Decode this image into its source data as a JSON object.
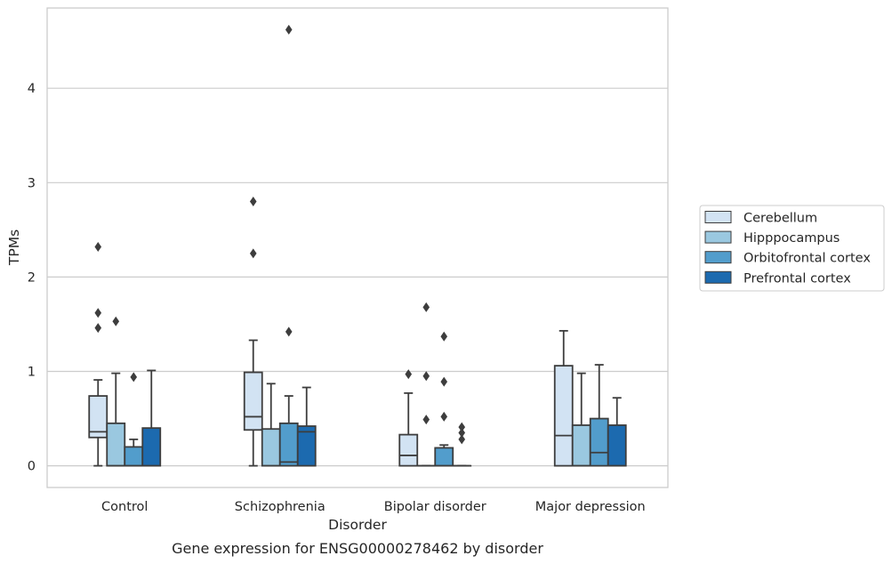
{
  "caption": "Gene expression for ENSG00000278462 by disorder",
  "chart_data": {
    "type": "box",
    "xlabel": "Disorder",
    "ylabel": "TPMs",
    "ylim": [
      -0.23,
      4.85
    ],
    "yticks": [
      0,
      1,
      2,
      3,
      4
    ],
    "grid": "horizontal",
    "legend_position": "right",
    "categories": [
      "Control",
      "Schizophrenia",
      "Bipolar disorder",
      "Major depression"
    ],
    "series": [
      {
        "name": "Cerebellum",
        "color": "#d2e3f3",
        "boxes": [
          {
            "whislo": 0.0,
            "q1": 0.3,
            "med": 0.36,
            "q3": 0.74,
            "whishi": 0.91,
            "fliers": [
              1.46,
              1.62,
              2.32
            ]
          },
          {
            "whislo": 0.0,
            "q1": 0.38,
            "med": 0.52,
            "q3": 0.99,
            "whishi": 1.33,
            "fliers": [
              2.25,
              2.8
            ]
          },
          {
            "whislo": 0.0,
            "q1": 0.0,
            "med": 0.11,
            "q3": 0.33,
            "whishi": 0.77,
            "fliers": [
              0.97
            ]
          },
          {
            "whislo": 0.0,
            "q1": 0.0,
            "med": 0.32,
            "q3": 1.06,
            "whishi": 1.43,
            "fliers": []
          }
        ]
      },
      {
        "name": "Hipppocampus",
        "color": "#9ac8e0",
        "boxes": [
          {
            "whislo": 0.0,
            "q1": 0.0,
            "med": 0.0,
            "q3": 0.45,
            "whishi": 0.98,
            "fliers": [
              1.53
            ]
          },
          {
            "whislo": 0.0,
            "q1": 0.0,
            "med": 0.0,
            "q3": 0.39,
            "whishi": 0.87,
            "fliers": []
          },
          {
            "whislo": 0.0,
            "q1": 0.0,
            "med": 0.0,
            "q3": 0.0,
            "whishi": 0.0,
            "fliers": [
              0.49,
              0.95,
              1.68
            ]
          },
          {
            "whislo": 0.0,
            "q1": 0.0,
            "med": 0.0,
            "q3": 0.43,
            "whishi": 0.98,
            "fliers": []
          }
        ]
      },
      {
        "name": "Orbitofrontal cortex",
        "color": "#529dcc",
        "boxes": [
          {
            "whislo": 0.0,
            "q1": 0.0,
            "med": 0.0,
            "q3": 0.2,
            "whishi": 0.28,
            "fliers": [
              0.94
            ]
          },
          {
            "whislo": 0.0,
            "q1": 0.0,
            "med": 0.04,
            "q3": 0.45,
            "whishi": 0.74,
            "fliers": [
              1.42,
              4.62
            ]
          },
          {
            "whislo": 0.0,
            "q1": 0.0,
            "med": 0.0,
            "q3": 0.19,
            "whishi": 0.22,
            "fliers": [
              0.52,
              0.89,
              1.37
            ]
          },
          {
            "whislo": 0.0,
            "q1": 0.0,
            "med": 0.14,
            "q3": 0.5,
            "whishi": 1.07,
            "fliers": []
          }
        ]
      },
      {
        "name": "Prefrontal cortex",
        "color": "#1c6aaf",
        "boxes": [
          {
            "whislo": 0.0,
            "q1": 0.0,
            "med": 0.0,
            "q3": 0.4,
            "whishi": 1.01,
            "fliers": []
          },
          {
            "whislo": 0.0,
            "q1": 0.0,
            "med": 0.36,
            "q3": 0.42,
            "whishi": 0.83,
            "fliers": []
          },
          {
            "whislo": 0.0,
            "q1": 0.0,
            "med": 0.0,
            "q3": 0.0,
            "whishi": 0.0,
            "fliers": [
              0.28,
              0.35,
              0.41
            ]
          },
          {
            "whislo": 0.0,
            "q1": 0.0,
            "med": 0.0,
            "q3": 0.43,
            "whishi": 0.72,
            "fliers": []
          }
        ]
      }
    ]
  }
}
